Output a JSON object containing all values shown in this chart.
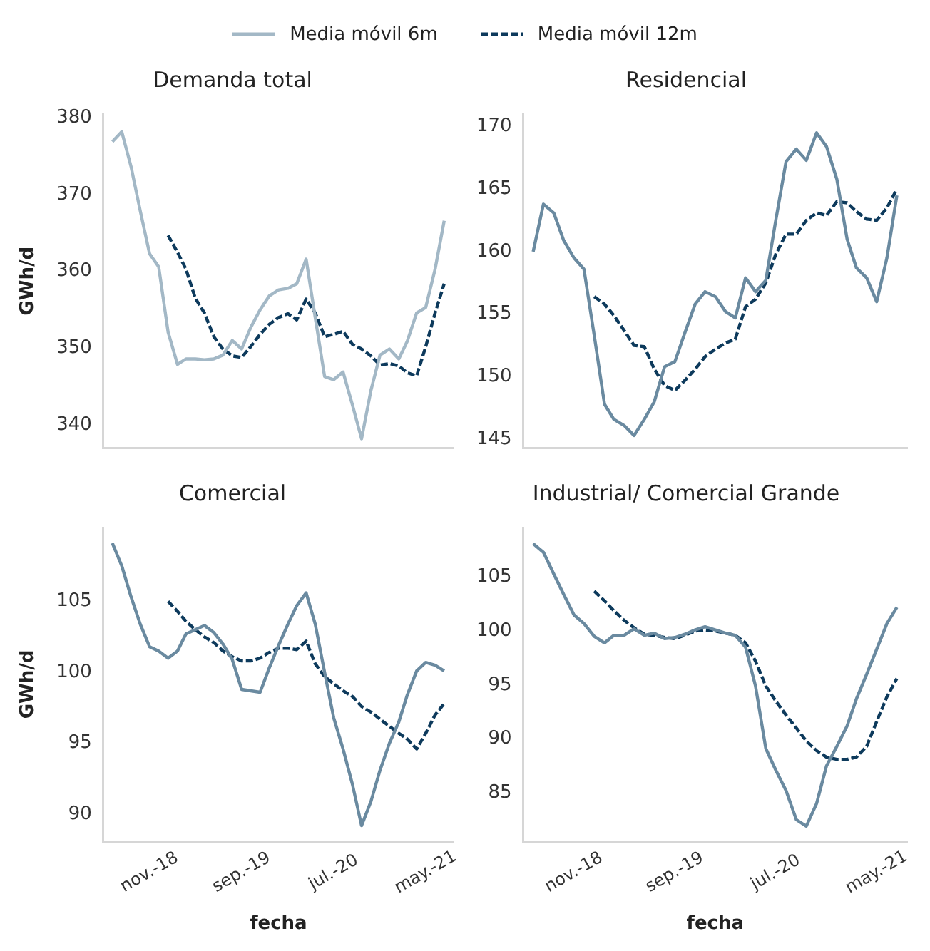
{
  "chart_data": [
    {
      "type": "line",
      "title": "Demanda total",
      "ylabel": "GWh/d",
      "x": [
        "2018-07",
        "2018-08",
        "2018-09",
        "2018-10",
        "2018-11",
        "2018-12",
        "2019-01",
        "2019-02",
        "2019-03",
        "2019-04",
        "2019-05",
        "2019-06",
        "2019-07",
        "2019-08",
        "2019-09",
        "2019-10",
        "2019-11",
        "2019-12",
        "2020-01",
        "2020-02",
        "2020-03",
        "2020-04",
        "2020-05",
        "2020-06",
        "2020-07",
        "2020-08",
        "2020-09",
        "2020-10",
        "2020-11",
        "2020-12",
        "2021-01",
        "2021-02",
        "2021-03",
        "2021-04",
        "2021-05",
        "2021-06",
        "2021-07"
      ],
      "xlim": [
        "2018-06",
        "2021-08"
      ],
      "ylim": [
        337,
        380.5
      ],
      "yticks": [
        340,
        350,
        360,
        370,
        380
      ],
      "tick_labels": "y",
      "legend": "top",
      "series": [
        {
          "name": "Media móvil 6m",
          "color": "#a3b8c6",
          "line_style": "solid",
          "values": [
            376.9,
            378.2,
            373.6,
            367.9,
            362.3,
            360.6,
            352.1,
            347.9,
            348.6,
            348.6,
            348.5,
            348.6,
            349.1,
            351.0,
            349.9,
            352.7,
            355.0,
            356.8,
            357.6,
            357.8,
            358.4,
            361.6,
            354.0,
            346.3,
            345.9,
            346.9,
            342.6,
            338.2,
            344.5,
            349.1,
            349.9,
            348.6,
            350.9,
            354.6,
            355.3,
            360.3,
            366.6
          ]
        },
        {
          "name": "Media móvil 12m",
          "color": "#0d3a5c",
          "line_style": "dashed",
          "values": [
            null,
            null,
            null,
            null,
            null,
            null,
            364.7,
            362.5,
            360.3,
            356.5,
            354.6,
            351.5,
            349.9,
            349.0,
            348.8,
            350.2,
            351.8,
            353.1,
            354.0,
            354.5,
            353.7,
            356.4,
            354.6,
            351.5,
            351.8,
            352.2,
            350.5,
            349.9,
            349.0,
            347.8,
            348.0,
            347.7,
            346.8,
            346.4,
            350.2,
            354.6,
            358.4
          ]
        }
      ]
    },
    {
      "type": "line",
      "title": "Residencial",
      "x": [
        "2018-07",
        "2018-08",
        "2018-09",
        "2018-10",
        "2018-11",
        "2018-12",
        "2019-01",
        "2019-02",
        "2019-03",
        "2019-04",
        "2019-05",
        "2019-06",
        "2019-07",
        "2019-08",
        "2019-09",
        "2019-10",
        "2019-11",
        "2019-12",
        "2020-01",
        "2020-02",
        "2020-03",
        "2020-04",
        "2020-05",
        "2020-06",
        "2020-07",
        "2020-08",
        "2020-09",
        "2020-10",
        "2020-11",
        "2020-12",
        "2021-01",
        "2021-02",
        "2021-03",
        "2021-04",
        "2021-05",
        "2021-06",
        "2021-07"
      ],
      "xlim": [
        "2018-06",
        "2021-08"
      ],
      "ylim": [
        144.3,
        171
      ],
      "yticks": [
        145,
        150,
        155,
        160,
        165,
        170
      ],
      "tick_labels": "y",
      "series": [
        {
          "color": "#6a8aa0",
          "line_style": "solid",
          "values": [
            160.0,
            163.8,
            163.1,
            160.9,
            159.5,
            158.6,
            153.3,
            147.8,
            146.6,
            146.1,
            145.3,
            146.6,
            148.0,
            150.8,
            151.2,
            153.5,
            155.8,
            156.8,
            156.4,
            155.2,
            154.7,
            157.9,
            156.8,
            157.7,
            162.5,
            167.2,
            168.2,
            167.3,
            169.5,
            168.4,
            165.8,
            161.0,
            158.7,
            157.9,
            156.0,
            159.5,
            164.5
          ]
        },
        {
          "color": "#0d3a5c",
          "line_style": "dashed",
          "values": [
            null,
            null,
            null,
            null,
            null,
            null,
            156.4,
            155.8,
            154.9,
            153.7,
            152.5,
            152.4,
            150.6,
            149.3,
            148.9,
            149.7,
            150.6,
            151.6,
            152.2,
            152.7,
            153.0,
            155.6,
            156.2,
            157.5,
            159.8,
            161.4,
            161.4,
            162.5,
            163.1,
            162.9,
            164.0,
            163.9,
            163.2,
            162.6,
            162.5,
            163.5,
            165.0
          ]
        }
      ]
    },
    {
      "type": "line",
      "title": "Comercial",
      "xlabel": "fecha",
      "ylabel": "GWh/d",
      "x": [
        "2018-07",
        "2018-08",
        "2018-09",
        "2018-10",
        "2018-11",
        "2018-12",
        "2019-01",
        "2019-02",
        "2019-03",
        "2019-04",
        "2019-05",
        "2019-06",
        "2019-07",
        "2019-08",
        "2019-09",
        "2019-10",
        "2019-11",
        "2019-12",
        "2020-01",
        "2020-02",
        "2020-03",
        "2020-04",
        "2020-05",
        "2020-06",
        "2020-07",
        "2020-08",
        "2020-09",
        "2020-10",
        "2020-11",
        "2020-12",
        "2021-01",
        "2021-02",
        "2021-03",
        "2021-04",
        "2021-05",
        "2021-06",
        "2021-07"
      ],
      "xlim": [
        "2018-06",
        "2021-08"
      ],
      "xticks": [
        {
          "value": "2018-11",
          "label": "nov.-18"
        },
        {
          "value": "2019-09",
          "label": "sep.-19"
        },
        {
          "value": "2020-07",
          "label": "jul.-20"
        },
        {
          "value": "2021-05",
          "label": "may.-21"
        }
      ],
      "ylim": [
        88.1,
        110.2
      ],
      "yticks": [
        90,
        95,
        100,
        105
      ],
      "series": [
        {
          "color": "#6a8aa0",
          "line_style": "solid",
          "values": [
            109.1,
            107.5,
            105.3,
            103.4,
            101.8,
            101.5,
            101.0,
            101.5,
            102.7,
            103.0,
            103.3,
            102.8,
            102.0,
            100.9,
            98.8,
            98.7,
            98.6,
            100.3,
            101.9,
            103.4,
            104.7,
            105.6,
            103.4,
            100.0,
            96.8,
            94.6,
            92.1,
            89.2,
            90.9,
            93.1,
            95.0,
            96.5,
            98.4,
            100.1,
            100.7,
            100.5,
            100.1
          ]
        },
        {
          "color": "#0d3a5c",
          "line_style": "dashed",
          "values": [
            null,
            null,
            null,
            null,
            null,
            null,
            105.0,
            104.3,
            103.6,
            103.0,
            102.5,
            102.1,
            101.5,
            101.1,
            100.8,
            100.8,
            101.0,
            101.4,
            101.7,
            101.7,
            101.6,
            102.2,
            100.6,
            99.7,
            99.2,
            98.7,
            98.3,
            97.6,
            97.2,
            96.7,
            96.2,
            95.7,
            95.3,
            94.6,
            95.7,
            97.0,
            97.8
          ]
        }
      ]
    },
    {
      "type": "line",
      "title": "Industrial/ Comercial Grande",
      "xlabel": "fecha",
      "x": [
        "2018-07",
        "2018-08",
        "2018-09",
        "2018-10",
        "2018-11",
        "2018-12",
        "2019-01",
        "2019-02",
        "2019-03",
        "2019-04",
        "2019-05",
        "2019-06",
        "2019-07",
        "2019-08",
        "2019-09",
        "2019-10",
        "2019-11",
        "2019-12",
        "2020-01",
        "2020-02",
        "2020-03",
        "2020-04",
        "2020-05",
        "2020-06",
        "2020-07",
        "2020-08",
        "2020-09",
        "2020-10",
        "2020-11",
        "2020-12",
        "2021-01",
        "2021-02",
        "2021-03",
        "2021-04",
        "2021-05",
        "2021-06",
        "2021-07"
      ],
      "xlim": [
        "2018-06",
        "2021-08"
      ],
      "xticks": [
        {
          "value": "2018-11",
          "label": "nov.-18"
        },
        {
          "value": "2019-09",
          "label": "sep.-19"
        },
        {
          "value": "2020-07",
          "label": "jul.-20"
        },
        {
          "value": "2021-05",
          "label": "may.-21"
        }
      ],
      "ylim": [
        80.5,
        109.6
      ],
      "yticks": [
        85,
        90,
        95,
        100,
        105
      ],
      "series": [
        {
          "color": "#6a8aa0",
          "line_style": "solid",
          "values": [
            108.1,
            107.3,
            105.3,
            103.4,
            101.5,
            100.7,
            99.5,
            98.9,
            99.6,
            99.6,
            100.2,
            99.6,
            99.8,
            99.3,
            99.4,
            99.7,
            100.1,
            100.4,
            100.1,
            99.8,
            99.6,
            98.5,
            94.9,
            89.1,
            87.1,
            85.2,
            82.5,
            81.9,
            84.0,
            87.5,
            89.3,
            91.2,
            93.7,
            96.0,
            98.3,
            100.7,
            102.2
          ]
        },
        {
          "color": "#0d3a5c",
          "line_style": "dashed",
          "values": [
            null,
            null,
            null,
            null,
            null,
            null,
            103.7,
            102.8,
            101.9,
            101.0,
            100.3,
            99.7,
            99.6,
            99.4,
            99.3,
            99.6,
            100.0,
            100.1,
            100.0,
            99.8,
            99.6,
            98.9,
            97.2,
            94.9,
            93.5,
            92.2,
            91.0,
            89.8,
            88.9,
            88.3,
            88.1,
            88.1,
            88.3,
            89.3,
            91.6,
            93.9,
            95.6
          ]
        }
      ]
    }
  ]
}
